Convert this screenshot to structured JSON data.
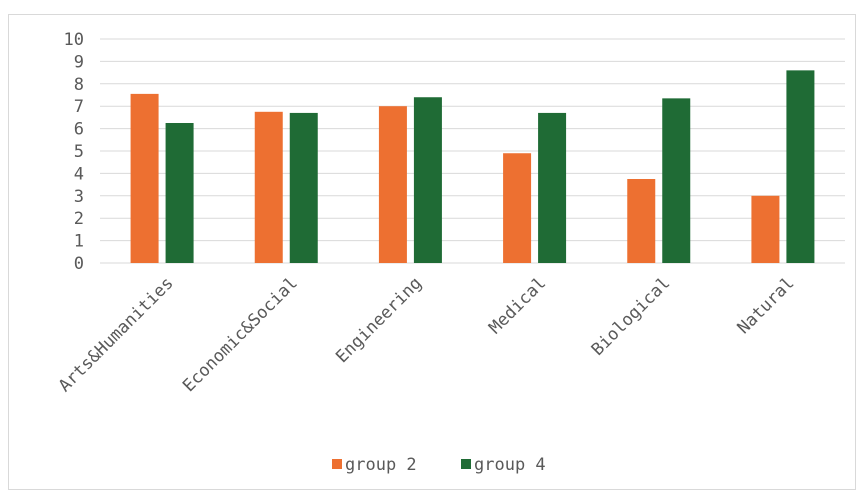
{
  "chart_data": {
    "type": "bar",
    "title": "",
    "xlabel": "",
    "ylabel": "",
    "categories": [
      "Arts&Humanities",
      "Economic&Social",
      "Engineering",
      "Medical",
      "Biological",
      "Natural"
    ],
    "series": [
      {
        "name": "group 2",
        "color": "#ed7031",
        "values": [
          7.55,
          6.75,
          7.0,
          4.9,
          3.75,
          3.0
        ]
      },
      {
        "name": "group 4",
        "color": "#1f6b35",
        "values": [
          6.25,
          6.7,
          7.4,
          6.7,
          7.35,
          8.6
        ]
      }
    ],
    "ylim": [
      0,
      10
    ],
    "yticks": [
      0,
      1,
      2,
      3,
      4,
      5,
      6,
      7,
      8,
      9,
      10
    ],
    "grid": true,
    "legend": "bottom"
  }
}
